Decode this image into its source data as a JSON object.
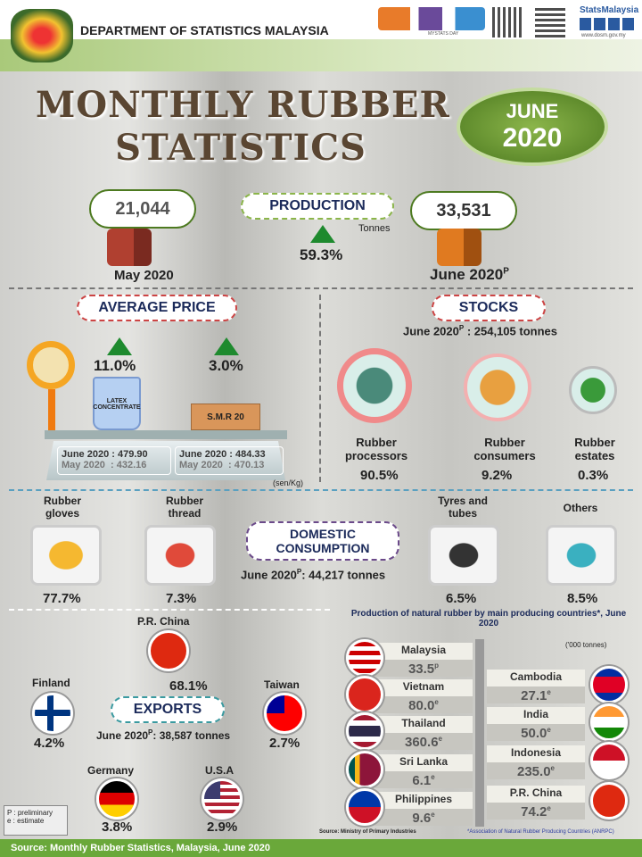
{
  "header": {
    "org": "DEPARTMENT OF STATISTICS MALAYSIA",
    "brand": "StatsMalaysia",
    "website": "www.dosm.gov.my",
    "mystats": "MYSTATS DAY"
  },
  "title": {
    "line1": "MONTHLY RUBBER",
    "line2": "STATISTICS",
    "month": "JUNE",
    "year": "2020"
  },
  "production": {
    "label": "PRODUCTION",
    "prev_value": "21,044",
    "prev_period": "May 2020",
    "curr_value": "33,531",
    "curr_period": "June 2020",
    "curr_sup": "P",
    "unit": "Tonnes",
    "change": "59.3%"
  },
  "average_price": {
    "label": "AVERAGE PRICE",
    "unit": "(sen/Kg)",
    "latex": {
      "name": "LATEX CONCENTRATE",
      "change": "11.0%",
      "june": "June 2020 : 479.90",
      "may": "May 2020  : 432.16"
    },
    "smr": {
      "name": "S.M.R 20",
      "change": "3.0%",
      "june": "June 2020 : 484.33",
      "may": "May 2020  : 470.13"
    }
  },
  "stocks": {
    "label": "STOCKS",
    "summary_pre": "June 2020",
    "sup": "P",
    "summary_post": " : 254,105 tonnes",
    "items": [
      {
        "name": "Rubber processors",
        "pct": "90.5%",
        "share": 90.5
      },
      {
        "name": "Rubber consumers",
        "pct": "9.2%",
        "share": 9.2
      },
      {
        "name": "Rubber estates",
        "pct": "0.3%",
        "share": 0.3
      }
    ]
  },
  "domestic": {
    "label": "DOMESTIC CONSUMPTION",
    "summary_pre": "June 2020",
    "sup": "P",
    "summary_post": ": 44,217 tonnes",
    "items": [
      {
        "name": "Rubber gloves",
        "pct": "77.7%"
      },
      {
        "name": "Rubber thread",
        "pct": "7.3%"
      },
      {
        "name": "Tyres and tubes",
        "pct": "6.5%"
      },
      {
        "name": "Others",
        "pct": "8.5%"
      }
    ]
  },
  "exports": {
    "label": "EXPORTS",
    "summary_pre": "June 2020",
    "sup": "P",
    "summary_post": ": 38,587 tonnes",
    "items": [
      {
        "name": "P.R. China",
        "pct": "68.1%"
      },
      {
        "name": "Finland",
        "pct": "4.2%"
      },
      {
        "name": "Taiwan",
        "pct": "2.7%"
      },
      {
        "name": "Germany",
        "pct": "3.8%"
      },
      {
        "name": "U.S.A",
        "pct": "2.9%"
      }
    ]
  },
  "producers": {
    "title": "Production of natural rubber by main producing countries*, June 2020",
    "unit": "('000 tonnes)",
    "left": [
      {
        "name": "Malaysia",
        "value": "33.5",
        "sup": "p"
      },
      {
        "name": "Vietnam",
        "value": "80.0",
        "sup": "e"
      },
      {
        "name": "Thailand",
        "value": "360.6",
        "sup": "e"
      },
      {
        "name": "Sri Lanka",
        "value": "6.1",
        "sup": "e"
      },
      {
        "name": "Philippines",
        "value": "9.6",
        "sup": "e"
      }
    ],
    "right": [
      {
        "name": "Cambodia",
        "value": "27.1",
        "sup": "e"
      },
      {
        "name": "India",
        "value": "50.0",
        "sup": "e"
      },
      {
        "name": "Indonesia",
        "value": "235.0",
        "sup": "e"
      },
      {
        "name": "P.R. China",
        "value": "74.2",
        "sup": "e"
      }
    ],
    "source": "Source: Ministry  of Primary Industries",
    "note": "*Association of Natural Rubber Producing Countries (ANRPC)"
  },
  "legend": {
    "p": "P : preliminary",
    "e": "e : estimate"
  },
  "footer": {
    "source": "Source: Monthly Rubber Statistics, Malaysia, June 2020"
  }
}
